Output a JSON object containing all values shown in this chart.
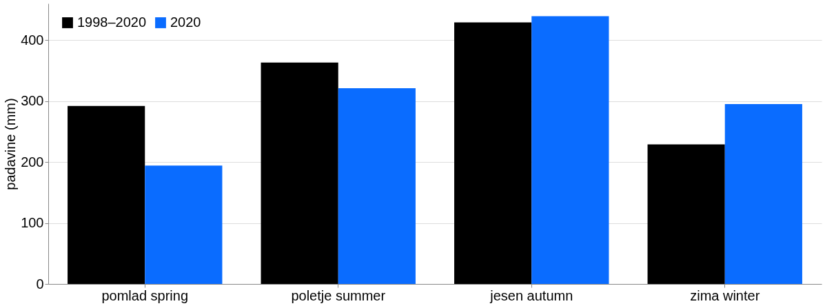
{
  "chart_data": {
    "type": "bar",
    "ylabel": "padavine (mm)",
    "categories": [
      "pomlad  spring",
      "poletje  summer",
      "jesen autumn",
      "zima winter"
    ],
    "series": [
      {
        "name": "1998–2020",
        "color": "#000000",
        "values": [
          292,
          363,
          429,
          229
        ]
      },
      {
        "name": "2020",
        "color": "#0a6cff",
        "values": [
          194,
          321,
          439,
          295
        ]
      }
    ],
    "ylim": [
      0,
      460
    ],
    "yticks": [
      0,
      100,
      200,
      300,
      400
    ],
    "grid": "y",
    "legend": "top left"
  }
}
